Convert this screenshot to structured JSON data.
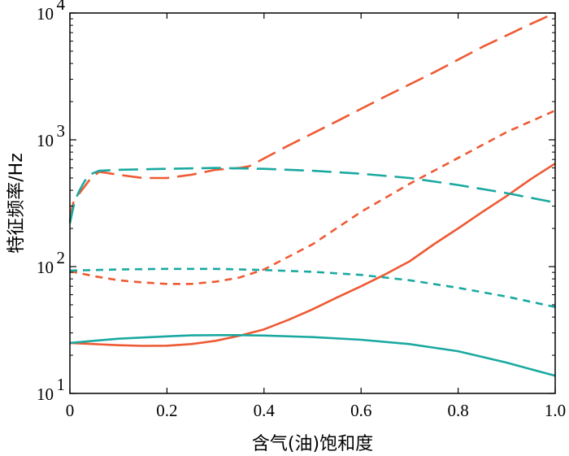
{
  "chart_data": {
    "type": "line",
    "xlabel": "含气(油)饱和度",
    "ylabel": "特征频率/Hz",
    "xlim": [
      0,
      1.0
    ],
    "ylim": [
      10,
      10000
    ],
    "yscale": "log",
    "grid": false,
    "legend": "none",
    "x_ticks": [
      "0",
      "0.2",
      "0.4",
      "0.6",
      "0.8",
      "1.0"
    ],
    "x_tick_values": [
      0,
      0.2,
      0.4,
      0.6,
      0.8,
      1.0
    ],
    "y_ticks": [
      {
        "base": "10",
        "exp": "1",
        "value": 10
      },
      {
        "base": "10",
        "exp": "2",
        "value": 100
      },
      {
        "base": "10",
        "exp": "3",
        "value": 1000
      },
      {
        "base": "10",
        "exp": "4",
        "value": 10000
      }
    ],
    "series": [
      {
        "color": "#ee5a33",
        "dash": "long",
        "x": [
          0,
          0.005,
          0.01,
          0.015,
          0.02,
          0.04,
          0.06,
          0.1,
          0.15,
          0.2,
          0.25,
          0.3,
          0.35,
          0.37,
          0.45,
          0.55,
          0.65,
          0.75,
          0.85,
          0.95,
          1.0
        ],
        "y": [
          230,
          300,
          350,
          370,
          380,
          480,
          560,
          530,
          500,
          500,
          530,
          580,
          600,
          620,
          900,
          1400,
          2200,
          3400,
          5400,
          8200,
          10000
        ]
      },
      {
        "color": "#ee5a33",
        "dash": "short",
        "x": [
          0,
          0.05,
          0.1,
          0.15,
          0.2,
          0.25,
          0.3,
          0.35,
          0.4,
          0.5,
          0.6,
          0.7,
          0.8,
          0.9,
          1.0
        ],
        "y": [
          92,
          84,
          78,
          75,
          73,
          73,
          76,
          82,
          95,
          150,
          270,
          450,
          720,
          1150,
          1700
        ]
      },
      {
        "color": "#ee5a33",
        "dash": "solid",
        "x": [
          0,
          0.05,
          0.1,
          0.15,
          0.2,
          0.25,
          0.3,
          0.35,
          0.4,
          0.45,
          0.5,
          0.55,
          0.6,
          0.65,
          0.7,
          0.75,
          0.8,
          0.85,
          0.9,
          0.95,
          1.0
        ],
        "y": [
          25,
          24.5,
          24,
          23.7,
          23.8,
          24.5,
          26,
          28.5,
          32,
          38,
          46,
          57,
          70,
          87,
          110,
          150,
          200,
          270,
          360,
          490,
          650
        ]
      },
      {
        "color": "#1aa9a0",
        "dash": "long",
        "x": [
          0,
          0.005,
          0.01,
          0.02,
          0.03,
          0.04,
          0.06,
          0.1,
          0.2,
          0.3,
          0.4,
          0.5,
          0.6,
          0.7,
          0.8,
          0.9,
          1.0
        ],
        "y": [
          220,
          270,
          330,
          400,
          470,
          530,
          570,
          580,
          590,
          600,
          590,
          570,
          540,
          500,
          440,
          380,
          320
        ]
      },
      {
        "color": "#1aa9a0",
        "dash": "short",
        "x": [
          0,
          0.1,
          0.2,
          0.3,
          0.4,
          0.5,
          0.6,
          0.7,
          0.8,
          0.9,
          1.0
        ],
        "y": [
          93,
          95,
          96,
          96,
          94,
          91,
          86,
          78,
          68,
          58,
          48
        ]
      },
      {
        "color": "#1aa9a0",
        "dash": "solid",
        "x": [
          0,
          0.1,
          0.2,
          0.25,
          0.3,
          0.35,
          0.4,
          0.5,
          0.6,
          0.7,
          0.8,
          0.9,
          0.95,
          1.0
        ],
        "y": [
          25,
          27,
          28.2,
          28.7,
          28.8,
          28.8,
          28.6,
          27.8,
          26.5,
          24.5,
          21.5,
          17.5,
          15.5,
          13.8
        ]
      }
    ]
  }
}
